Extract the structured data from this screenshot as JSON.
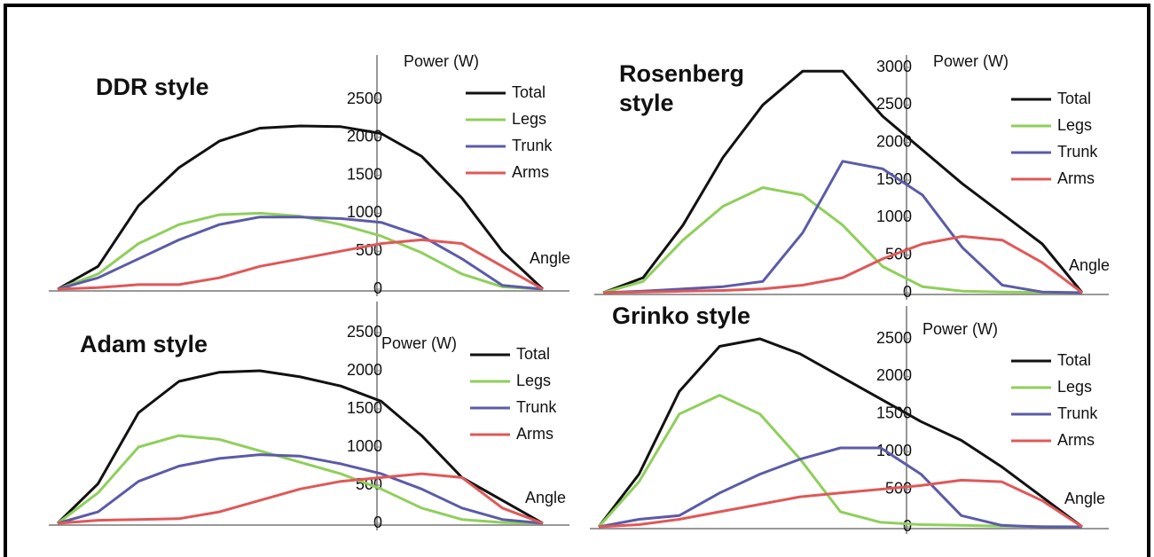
{
  "chart_data": [
    {
      "type": "line",
      "title": "DDR style",
      "y_label": "Power (W)",
      "x_label": "Angle",
      "categories": [
        null,
        null,
        null,
        null,
        null,
        null,
        null,
        null,
        null,
        null,
        null,
        null,
        null
      ],
      "ylim": [
        0,
        2500
      ],
      "yticks": [
        0,
        500,
        1000,
        1500,
        2000,
        2500
      ],
      "series": [
        {
          "name": "Total",
          "color": "#111111",
          "values": [
            0,
            300,
            1100,
            1600,
            1950,
            2120,
            2150,
            2140,
            2050,
            1750,
            1200,
            500,
            0
          ]
        },
        {
          "name": "Legs",
          "color": "#8fcf5a",
          "values": [
            0,
            200,
            600,
            850,
            980,
            1000,
            960,
            850,
            700,
            480,
            200,
            30,
            0
          ]
        },
        {
          "name": "Trunk",
          "color": "#5b5ba8",
          "values": [
            0,
            150,
            400,
            650,
            850,
            950,
            950,
            930,
            880,
            700,
            400,
            50,
            0
          ]
        },
        {
          "name": "Arms",
          "color": "#e05858",
          "values": [
            0,
            20,
            60,
            60,
            150,
            300,
            400,
            500,
            600,
            650,
            600,
            300,
            0
          ]
        }
      ]
    },
    {
      "type": "line",
      "title": "Rosenberg style",
      "y_label": "Power (W)",
      "x_label": "Angle",
      "categories": [
        null,
        null,
        null,
        null,
        null,
        null,
        null,
        null,
        null,
        null,
        null,
        null,
        null
      ],
      "ylim": [
        0,
        3000
      ],
      "yticks": [
        0,
        500,
        1000,
        1500,
        2000,
        2500,
        3000
      ],
      "series": [
        {
          "name": "Total",
          "color": "#111111",
          "values": [
            0,
            200,
            900,
            1800,
            2500,
            2950,
            2950,
            2350,
            1900,
            1450,
            1050,
            650,
            0
          ]
        },
        {
          "name": "Legs",
          "color": "#8fcf5a",
          "values": [
            0,
            150,
            700,
            1150,
            1400,
            1300,
            900,
            350,
            80,
            20,
            10,
            5,
            0
          ]
        },
        {
          "name": "Trunk",
          "color": "#5b5ba8",
          "values": [
            0,
            20,
            50,
            80,
            150,
            800,
            1750,
            1650,
            1300,
            600,
            100,
            10,
            0
          ]
        },
        {
          "name": "Arms",
          "color": "#e05858",
          "values": [
            0,
            10,
            20,
            30,
            50,
            100,
            200,
            450,
            650,
            750,
            700,
            400,
            0
          ]
        }
      ]
    },
    {
      "type": "line",
      "title": "Adam style",
      "y_label": "Power (W)",
      "x_label": "Angle",
      "categories": [
        null,
        null,
        null,
        null,
        null,
        null,
        null,
        null,
        null,
        null,
        null,
        null,
        null
      ],
      "ylim": [
        0,
        2500
      ],
      "yticks": [
        0,
        500,
        1000,
        1500,
        2000,
        2500
      ],
      "series": [
        {
          "name": "Total",
          "color": "#111111",
          "values": [
            0,
            520,
            1450,
            1860,
            1980,
            2000,
            1920,
            1800,
            1600,
            1150,
            600,
            300,
            0
          ]
        },
        {
          "name": "Legs",
          "color": "#8fcf5a",
          "values": [
            0,
            400,
            1000,
            1150,
            1100,
            950,
            800,
            650,
            450,
            200,
            50,
            10,
            0
          ]
        },
        {
          "name": "Trunk",
          "color": "#5b5ba8",
          "values": [
            0,
            150,
            550,
            750,
            850,
            900,
            880,
            780,
            650,
            450,
            200,
            50,
            0
          ]
        },
        {
          "name": "Arms",
          "color": "#e05858",
          "values": [
            0,
            40,
            50,
            60,
            150,
            300,
            450,
            550,
            600,
            650,
            600,
            200,
            0
          ]
        }
      ]
    },
    {
      "type": "line",
      "title": "Grinko style",
      "y_label": "Power (W)",
      "x_label": "Angle",
      "categories": [
        null,
        null,
        null,
        null,
        null,
        null,
        null,
        null,
        null,
        null,
        null,
        null,
        null
      ],
      "ylim": [
        0,
        2500
      ],
      "yticks": [
        0,
        500,
        1000,
        1500,
        2000,
        2500
      ],
      "series": [
        {
          "name": "Total",
          "color": "#111111",
          "values": [
            0,
            700,
            1800,
            2400,
            2500,
            2300,
            2000,
            1700,
            1400,
            1150,
            800,
            400,
            0
          ]
        },
        {
          "name": "Legs",
          "color": "#8fcf5a",
          "values": [
            0,
            600,
            1500,
            1750,
            1500,
            900,
            200,
            60,
            30,
            20,
            10,
            5,
            0
          ]
        },
        {
          "name": "Trunk",
          "color": "#5b5ba8",
          "values": [
            0,
            100,
            150,
            450,
            700,
            900,
            1050,
            1050,
            700,
            150,
            20,
            0,
            0
          ]
        },
        {
          "name": "Arms",
          "color": "#e05858",
          "values": [
            0,
            30,
            100,
            200,
            300,
            400,
            450,
            500,
            550,
            620,
            600,
            350,
            0
          ]
        }
      ]
    }
  ]
}
